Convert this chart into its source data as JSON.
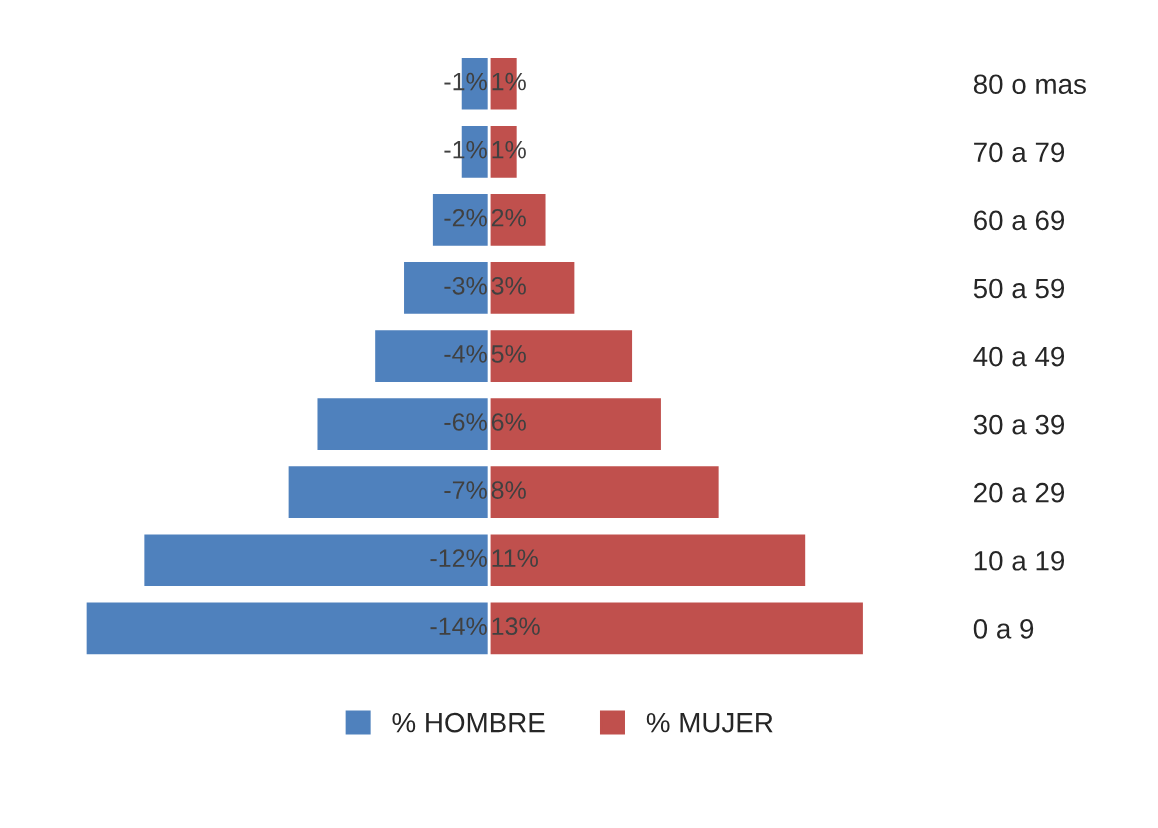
{
  "chart_data": {
    "type": "bar",
    "orientation": "horizontal",
    "stacked": true,
    "categories": [
      "80 o mas",
      "70 a 79",
      "60 a 69",
      "50 a 59",
      "40 a 49",
      "30 a 39",
      "20 a 29",
      "10 a 19",
      "0 a 9"
    ],
    "series": [
      {
        "name": "% HOMBRE",
        "color": "#4f81bd",
        "values": [
          -1,
          -1,
          -2,
          -3,
          -4,
          -6,
          -7,
          -12,
          -14
        ],
        "value_labels": [
          "-1%",
          "-1%",
          "-2%",
          "-3%",
          "-4%",
          "-6%",
          "-7%",
          "-12%",
          "-14%"
        ]
      },
      {
        "name": "% MUJER",
        "color": "#c0504d",
        "values": [
          1,
          1,
          2,
          3,
          5,
          6,
          8,
          11,
          13
        ],
        "value_labels": [
          "1%",
          "1%",
          "2%",
          "3%",
          "5%",
          "6%",
          "8%",
          "11%",
          "13%"
        ]
      }
    ],
    "legend": "bottom",
    "grid": false
  }
}
